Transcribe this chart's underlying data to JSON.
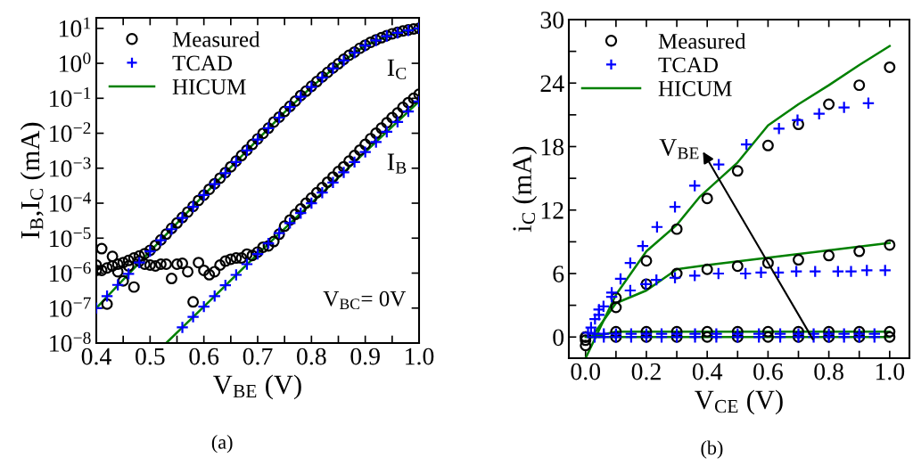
{
  "chart_data": [
    {
      "type": "scatter",
      "xlabel": "V$_{BE}$ (V)",
      "ylabel": "I$_{B}$,I$_{C}$ (mA)",
      "log": "y",
      "legend": "top left",
      "grid": false,
      "xlim": [
        0.4,
        1.0
      ],
      "xticks": [
        0.4,
        {
          "value": 0.45,
          "label": null
        },
        0.5,
        {
          "value": 0.55,
          "label": null
        },
        0.6,
        {
          "value": 0.65,
          "label": null
        },
        0.7,
        {
          "value": 0.75,
          "label": null
        },
        0.8,
        {
          "value": 0.85,
          "label": null
        },
        0.9,
        {
          "value": 0.95,
          "label": null
        },
        {
          "value": 1.0,
          "label": "1.0"
        }
      ],
      "ylim": [
        1e-08,
        20
      ],
      "yticks": [
        {
          "value": 1e-08,
          "label": "10$^{−8}$"
        },
        {
          "value": 1e-07,
          "label": "10$^{−7}$"
        },
        {
          "value": 1e-06,
          "label": "10$^{−6}$"
        },
        {
          "value": 1e-05,
          "label": "10$^{−5}$"
        },
        {
          "value": 0.0001,
          "label": "10$^{−4}$"
        },
        {
          "value": 0.001,
          "label": "10$^{−3}$"
        },
        {
          "value": 0.01,
          "label": "10$^{−2}$"
        },
        {
          "value": 0.1,
          "label": "10$^{−1}$"
        },
        {
          "value": 1,
          "label": "10$^{0}$"
        },
        {
          "value": 10,
          "label": "10$^{1}$"
        }
      ],
      "x": [
        0.4,
        0.41,
        0.42,
        0.43,
        0.44,
        0.45,
        0.46,
        0.47,
        0.48,
        0.49,
        0.5,
        0.51,
        0.52,
        0.53,
        0.54,
        0.55,
        0.56,
        0.57,
        0.58,
        0.59,
        0.6,
        0.61,
        0.62,
        0.63,
        0.64,
        0.65,
        0.66,
        0.67,
        0.68,
        0.69,
        0.7,
        0.71,
        0.72,
        0.73,
        0.74,
        0.75,
        0.76,
        0.77,
        0.78,
        0.79,
        0.8,
        0.81,
        0.82,
        0.83,
        0.84,
        0.85,
        0.86,
        0.87,
        0.88,
        0.89,
        0.9,
        0.91,
        0.92,
        0.93,
        0.94,
        0.95,
        0.96,
        0.97,
        0.98,
        0.99,
        1.0
      ],
      "series": [
        {
          "name": "Measured",
          "color": "#000000",
          "marker": "circle",
          "values": [
            1.7e-06,
            1.2e-06,
            1.4e-06,
            1.6e-06,
            1.8e-06,
            2e-06,
            2.3e-06,
            2.7e-06,
            3.1e-06,
            3.6e-06,
            4.5e-06,
            6.2e-06,
            8.9e-06,
            1.3e-05,
            1.9e-05,
            2.7e-05,
            3.9e-05,
            5.6e-05,
            8.1e-05,
            0.00012,
            0.00017,
            0.00025,
            0.00036,
            0.00052,
            0.00075,
            0.0011,
            0.0016,
            0.0023,
            0.0033,
            0.0048,
            0.0069,
            0.0099,
            0.014,
            0.021,
            0.029,
            0.042,
            0.059,
            0.083,
            0.12,
            0.16,
            0.22,
            0.3,
            0.41,
            0.55,
            0.74,
            0.97,
            1.3,
            1.7,
            2.1,
            2.7,
            3.3,
            4.0,
            4.7,
            5.4,
            6.2,
            7.0,
            7.7,
            8.4,
            9.0,
            9.6,
            10
          ]
        },
        {
          "color": "#000000",
          "marker": "circle",
          "values": [
            1.2e-06,
            5e-06,
            1.3e-07,
            3e-06,
            1.1e-06,
            6e-07,
            1.6e-06,
            4e-07,
            2.2e-06,
            1.8e-06,
            1.7e-06,
            1.6e-06,
            1.8e-06,
            1.8e-06,
            7e-07,
            1.8e-06,
            1.9e-06,
            1.1e-06,
            1.5e-07,
            2e-06,
            1.2e-06,
            9e-07,
            1.1e-06,
            1.7e-06,
            2.2e-06,
            2.5e-06,
            2.7e-06,
            2.7e-06,
            3.5e-06,
            3.2e-06,
            4e-06,
            5.5e-06,
            6e-06,
            8e-06,
            1.3e-05,
            2.2e-05,
            3.3e-05,
            4.8e-05,
            6.8e-05,
            0.0001,
            0.00014,
            0.0002,
            0.00028,
            0.0004,
            0.00056,
            0.0008,
            0.0011,
            0.0016,
            0.0023,
            0.0033,
            0.0048,
            0.007,
            0.01,
            0.014,
            0.02,
            0.028,
            0.038,
            0.055,
            0.075,
            0.1,
            0.13
          ]
        },
        {
          "name": "TCAD",
          "color": "#0000ff",
          "marker": "cross",
          "x": [
            0.4,
            0.42,
            0.44,
            0.46,
            0.48,
            0.5,
            0.52,
            0.54,
            0.56,
            0.58,
            0.6,
            0.62,
            0.64,
            0.66,
            0.68,
            0.7,
            0.72,
            0.74,
            0.76,
            0.78,
            0.8,
            0.82,
            0.84,
            0.86,
            0.88,
            0.9,
            0.92,
            0.94,
            0.96,
            0.98,
            1.0
          ],
          "values": [
            1e-07,
            2.2e-07,
            4.6e-07,
            9.5e-07,
            2e-06,
            4.2e-06,
            8.7e-06,
            1.8e-05,
            3.8e-05,
            7.9e-05,
            0.00017,
            0.00035,
            0.00072,
            0.0015,
            0.0032,
            0.0066,
            0.014,
            0.028,
            0.056,
            0.11,
            0.21,
            0.39,
            0.71,
            1.2,
            2.0,
            3.2,
            4.5,
            6.0,
            7.4,
            8.7,
            10
          ]
        },
        {
          "color": "#0000ff",
          "marker": "cross",
          "x": [
            0.56,
            0.58,
            0.6,
            0.62,
            0.64,
            0.66,
            0.68,
            0.7,
            0.72,
            0.74,
            0.76,
            0.78,
            0.8,
            0.82,
            0.84,
            0.86,
            0.88,
            0.9,
            0.92,
            0.94,
            0.96,
            0.98,
            1.0
          ],
          "values": [
            2.8e-08,
            5.6e-08,
            1.1e-07,
            2.2e-07,
            4.5e-07,
            8.9e-07,
            1.8e-06,
            3.5e-06,
            7.1e-06,
            1.4e-05,
            2.7e-05,
            5.2e-05,
            0.0001,
            0.0002,
            0.00039,
            0.00076,
            0.0015,
            0.0029,
            0.0056,
            0.011,
            0.021,
            0.042,
            0.081
          ]
        },
        {
          "name": "HICUM",
          "type": "line",
          "color": "#008000",
          "marker": "none",
          "line_style": "solid",
          "x": [
            0.4,
            0.5,
            0.6,
            0.7,
            0.75,
            0.8,
            0.85,
            0.9,
            0.95,
            1.0
          ],
          "values": [
            1e-07,
            4.2e-06,
            0.00017,
            0.0066,
            0.04,
            0.21,
            0.93,
            3.2,
            6.8,
            10
          ]
        },
        {
          "type": "line",
          "color": "#008000",
          "marker": "none",
          "line_style": "solid",
          "x": [
            0.53,
            0.6,
            0.7,
            0.8,
            0.9,
            1.0
          ],
          "values": [
            1e-08,
            1.1e-07,
            3.5e-06,
            0.0001,
            0.0029,
            0.081
          ]
        }
      ],
      "annotations": [
        "(a)",
        "V$_{BC}$= 0V",
        "I$_{C}$",
        "I$_{B}$"
      ]
    },
    {
      "type": "scatter",
      "xlabel": "V$_{CE}$ (V)",
      "ylabel": "i$_{C}$ (mA)",
      "legend": "top left",
      "grid": false,
      "xlim": [
        -0.055,
        1.065
      ],
      "xticks": [
        {
          "value": 0.0,
          "label": "0.0"
        },
        {
          "value": 0.1,
          "label": null
        },
        0.2,
        {
          "value": 0.3,
          "label": null
        },
        0.4,
        {
          "value": 0.5,
          "label": null
        },
        0.6,
        {
          "value": 0.7,
          "label": null
        },
        0.8,
        {
          "value": 0.9,
          "label": null
        },
        {
          "value": 1.0,
          "label": "1.0"
        }
      ],
      "ylim": [
        -2,
        30
      ],
      "yticks": [
        0,
        {
          "value": 3,
          "label": null
        },
        6,
        {
          "value": 9,
          "label": null
        },
        12,
        {
          "value": 15,
          "label": null
        },
        18,
        {
          "value": 21,
          "label": null
        },
        24,
        {
          "value": 27,
          "label": null
        },
        30
      ],
      "x": [
        0.0,
        0.1,
        0.2,
        0.3,
        0.4,
        0.5,
        0.6,
        0.7,
        0.8,
        0.9,
        1.0
      ],
      "series": [
        {
          "name": "Measured",
          "color": "#000000",
          "marker": "circle",
          "values": [
            -0.8,
            3.7,
            7.2,
            10.2,
            13.1,
            15.7,
            18.1,
            20.1,
            22.0,
            23.8,
            25.5
          ]
        },
        {
          "color": "#000000",
          "marker": "circle",
          "values": [
            -0.3,
            2.8,
            5.0,
            6.0,
            6.4,
            6.7,
            7.0,
            7.3,
            7.7,
            8.1,
            8.7
          ]
        },
        {
          "color": "#000000",
          "marker": "circle",
          "values": [
            0,
            0.5,
            0.5,
            0.5,
            0.5,
            0.5,
            0.5,
            0.5,
            0.5,
            0.5,
            0.5
          ]
        },
        {
          "color": "#000000",
          "marker": "circle",
          "values": [
            0,
            0,
            0,
            0,
            0,
            0,
            0,
            0,
            0,
            0,
            0
          ]
        },
        {
          "name": "TCAD",
          "color": "#0000ff",
          "marker": "cross",
          "x": [
            0.008,
            0.018,
            0.031,
            0.044,
            0.059,
            0.086,
            0.115,
            0.147,
            0.188,
            0.235,
            0.294,
            0.359,
            0.438,
            0.529,
            0.636,
            0.697,
            0.768,
            0.85,
            0.93
          ],
          "values": [
            0.4,
            0.9,
            1.7,
            2.1,
            2.9,
            4.2,
            5.5,
            7.0,
            8.6,
            10.4,
            12.3,
            14.3,
            16.3,
            18.2,
            19.7,
            20.5,
            21.1,
            21.7,
            22.1
          ]
        },
        {
          "color": "#0000ff",
          "marker": "cross",
          "x": [
            0.044,
            0.086,
            0.147,
            0.198,
            0.233,
            0.294,
            0.359,
            0.437,
            0.526,
            0.577,
            0.634,
            0.693,
            0.755,
            0.83,
            0.873,
            0.925,
            0.985
          ],
          "values": [
            2.6,
            3.8,
            4.4,
            5.0,
            5.4,
            5.6,
            5.8,
            6.0,
            6.0,
            6.1,
            6.1,
            6.2,
            6.2,
            6.2,
            6.2,
            6.3,
            6.3
          ]
        },
        {
          "color": "#0000ff",
          "marker": "cross",
          "x": [
            0.03,
            0.06,
            0.1,
            0.15,
            0.2,
            0.25,
            0.3,
            0.36,
            0.43,
            0.5,
            0.57,
            0.64,
            0.7,
            0.75,
            0.8,
            0.85,
            0.9,
            0.95
          ],
          "values": [
            0.3,
            0.3,
            0.3,
            0.3,
            0.3,
            0.3,
            0.3,
            0.3,
            0.3,
            0.3,
            0.3,
            0.3,
            0.3,
            0.3,
            0.3,
            0.3,
            0.3,
            0.3
          ]
        },
        {
          "color": "#0000ff",
          "marker": "cross",
          "x": [
            0.03,
            0.06,
            0.1,
            0.15,
            0.2,
            0.25,
            0.3,
            0.36,
            0.43,
            0.5,
            0.57,
            0.64,
            0.7,
            0.75,
            0.8,
            0.85,
            0.9,
            0.95
          ],
          "values": [
            0,
            0,
            0,
            0,
            0,
            0,
            0,
            0,
            0,
            0,
            0,
            0,
            0,
            0,
            0,
            0,
            0,
            0
          ]
        },
        {
          "name": "HICUM",
          "type": "line",
          "color": "#008000",
          "marker": "none",
          "line_style": "solid",
          "x": [
            0.0,
            0.1,
            0.2,
            0.3,
            0.377,
            0.5,
            0.6,
            0.7,
            0.8,
            0.9,
            1.0
          ],
          "values": [
            -2,
            4.0,
            8.1,
            10.6,
            13.3,
            16.5,
            20.0,
            22.0,
            23.8,
            25.7,
            27.5
          ]
        },
        {
          "type": "line",
          "color": "#008000",
          "marker": "none",
          "line_style": "solid",
          "x": [
            0.02,
            0.1,
            0.2,
            0.3,
            0.4,
            1.0
          ],
          "values": [
            0,
            3.2,
            4.4,
            6.4,
            6.8,
            8.9
          ]
        },
        {
          "type": "line",
          "color": "#008000",
          "marker": "none",
          "line_style": "solid",
          "x": [
            0.02,
            0.1,
            1.0
          ],
          "values": [
            0,
            0.5,
            0.5
          ]
        },
        {
          "type": "line",
          "color": "#008000",
          "marker": "none",
          "line_style": "solid",
          "x": [
            0.0,
            1.0
          ],
          "values": [
            0,
            0
          ]
        }
      ],
      "annotations": [
        "(b)",
        "V$_{BE}$"
      ]
    }
  ]
}
